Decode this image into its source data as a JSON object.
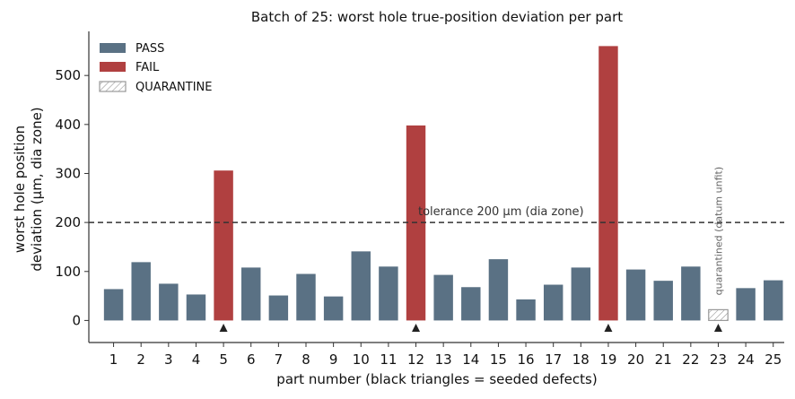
{
  "chart_data": {
    "type": "bar",
    "title": "Batch of 25: worst hole true-position deviation per part",
    "xlabel": "part number  (black triangles = seeded defects)",
    "ylabel_lines": [
      "worst hole position",
      "deviation (µm, dia zone)"
    ],
    "categories": [
      "1",
      "2",
      "3",
      "4",
      "5",
      "6",
      "7",
      "8",
      "9",
      "10",
      "11",
      "12",
      "13",
      "14",
      "15",
      "16",
      "17",
      "18",
      "19",
      "20",
      "21",
      "22",
      "23",
      "24",
      "25"
    ],
    "values": [
      64,
      119,
      75,
      53,
      306,
      108,
      51,
      95,
      49,
      141,
      110,
      398,
      93,
      68,
      125,
      43,
      73,
      108,
      560,
      104,
      81,
      110,
      22,
      66,
      82
    ],
    "status": [
      "pass",
      "pass",
      "pass",
      "pass",
      "fail",
      "pass",
      "pass",
      "pass",
      "pass",
      "pass",
      "pass",
      "fail",
      "pass",
      "pass",
      "pass",
      "pass",
      "pass",
      "pass",
      "fail",
      "pass",
      "pass",
      "pass",
      "quarantine",
      "pass",
      "pass"
    ],
    "seeded_defects": [
      "5",
      "12",
      "19",
      "23"
    ],
    "ylim": [
      -45,
      590
    ],
    "yticks": [
      0,
      100,
      200,
      300,
      400,
      500
    ],
    "tolerance": {
      "value": 200,
      "label": "tolerance 200 µm (dia zone)"
    },
    "quarantine_note": "quarantined (datum unfit)",
    "legend": {
      "placement": "top-left",
      "items": [
        {
          "key": "pass",
          "label": "PASS"
        },
        {
          "key": "fail",
          "label": "FAIL"
        },
        {
          "key": "quarantine",
          "label": "QUARANTINE"
        }
      ]
    },
    "colors": {
      "pass": "#5a7184",
      "fail": "#b04040",
      "quarantine": "#999999",
      "tolerance": "#333333",
      "marker": "#222222",
      "axis": "#333333",
      "text": "#111111"
    },
    "grid": false
  }
}
